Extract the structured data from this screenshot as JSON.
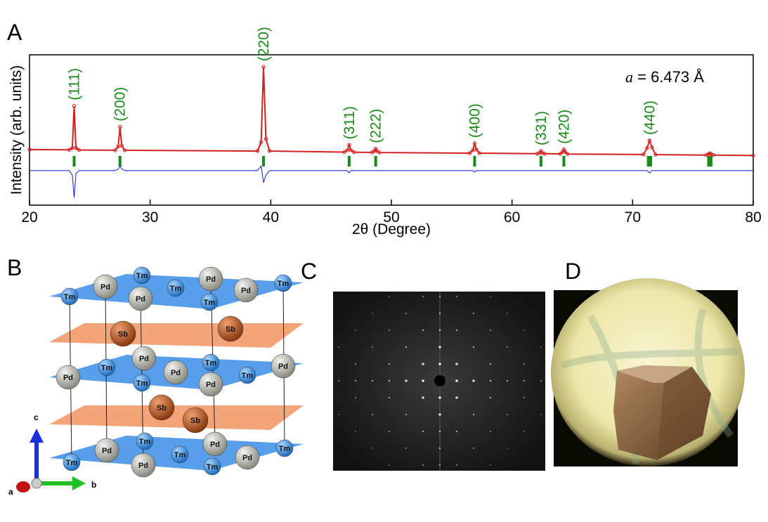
{
  "panels": [
    "A",
    "B",
    "C",
    "D"
  ],
  "chart_data": {
    "type": "line",
    "x_label": "2θ (Degree)",
    "y_label": "Intensity (arb. units)",
    "xlim": [
      20,
      80
    ],
    "xticks": [
      20,
      30,
      40,
      50,
      60,
      70,
      80
    ],
    "ylim": [
      0,
      100
    ],
    "x": [
      20,
      23.3,
      23.55,
      23.7,
      23.85,
      24.1,
      27.1,
      27.35,
      27.5,
      27.65,
      27.9,
      38.9,
      39.2,
      39.4,
      39.6,
      39.9,
      46.1,
      46.35,
      46.5,
      46.65,
      46.9,
      48.4,
      48.6,
      48.7,
      48.8,
      49.0,
      56.5,
      56.75,
      56.9,
      57.05,
      57.3,
      62.1,
      62.3,
      62.4,
      62.5,
      62.7,
      64.0,
      64.2,
      64.3,
      64.4,
      64.6,
      70.9,
      71.2,
      71.4,
      71.6,
      71.9,
      76.1,
      76.3,
      76.4,
      76.5,
      76.7,
      80
    ],
    "series": [
      {
        "color": "#d42020",
        "marker": "circle",
        "values": [
          37,
          36.8,
          38,
          66,
          38,
          36.7,
          36.5,
          39,
          52,
          39.5,
          36.5,
          36,
          42,
          92,
          44,
          36,
          35.3,
          36.5,
          40,
          36.5,
          35.2,
          35.1,
          36,
          37.5,
          36,
          35,
          34.6,
          36.5,
          41,
          37,
          34.6,
          34.2,
          34.8,
          36,
          34.8,
          34.2,
          34.1,
          35.5,
          37,
          35.5,
          34,
          33.7,
          38,
          43,
          38.5,
          33.6,
          33.3,
          34,
          34.5,
          34,
          33.3,
          33
        ]
      },
      {
        "color": "#222222",
        "values": [
          37,
          36.8,
          38.5,
          62,
          38,
          36.7,
          36.5,
          38.5,
          51,
          39,
          36.5,
          36,
          41,
          90,
          44,
          36,
          35.3,
          36.5,
          40,
          36.5,
          35.2,
          35.1,
          36,
          37.5,
          36,
          35,
          34.6,
          36.5,
          41,
          37,
          34.6,
          34.2,
          34.8,
          36,
          34.8,
          34.2,
          34.1,
          35.5,
          37,
          35.5,
          34,
          33.7,
          38,
          43,
          38.5,
          33.6,
          33.3,
          34,
          34.5,
          34,
          33.3,
          33
        ]
      },
      {
        "color": "#2030d0",
        "values": [
          23,
          23,
          20,
          5,
          21,
          23,
          23,
          24,
          26,
          24,
          23,
          23,
          26,
          15,
          20,
          23,
          23,
          23,
          21.5,
          23,
          23,
          23,
          23,
          23,
          23,
          23,
          23,
          23,
          22,
          23,
          23,
          23,
          23,
          23,
          23,
          23,
          23,
          23,
          23,
          23,
          23,
          23,
          23,
          21.5,
          23,
          23,
          23,
          23,
          23,
          23,
          23,
          23
        ]
      }
    ],
    "bragg_positions": [
      23.7,
      27.5,
      39.4,
      46.5,
      48.7,
      56.9,
      62.4,
      64.3,
      71.3,
      71.5,
      76.3,
      76.5
    ],
    "bragg_color": "#1a8a1a",
    "annotations": [
      {
        "text": "(111)",
        "x": 23.7
      },
      {
        "text": "(200)",
        "x": 27.5
      },
      {
        "text": "(220)",
        "x": 39.4
      },
      {
        "text": "(311)",
        "x": 46.5
      },
      {
        "text": "(222)",
        "x": 48.7
      },
      {
        "text": "(400)",
        "x": 56.9
      },
      {
        "text": "(331)",
        "x": 62.4
      },
      {
        "text": "(420)",
        "x": 64.3
      },
      {
        "text": "(440)",
        "x": 71.4
      }
    ],
    "annotation_color": "#1a8a1a",
    "lattice_label": {
      "symbol": "a",
      "text": "= 6.473 Å"
    }
  },
  "panel_b": {
    "axes": [
      "a",
      "b",
      "c"
    ],
    "atoms": [
      "Tm",
      "Pd",
      "Tm",
      "Pd",
      "Tm",
      "Pd",
      "Tm",
      "Pd",
      "Tm",
      "Sb",
      "Sb",
      "Pd",
      "Tm",
      "Pd",
      "Tm",
      "Pd",
      "Tm",
      "Pd",
      "Tm",
      "Pd",
      "Sb",
      "Sb",
      "Tm",
      "Pd",
      "Tm",
      "Pd",
      "Tm",
      "Pd",
      "Tm",
      "Pd",
      "Tm"
    ]
  }
}
